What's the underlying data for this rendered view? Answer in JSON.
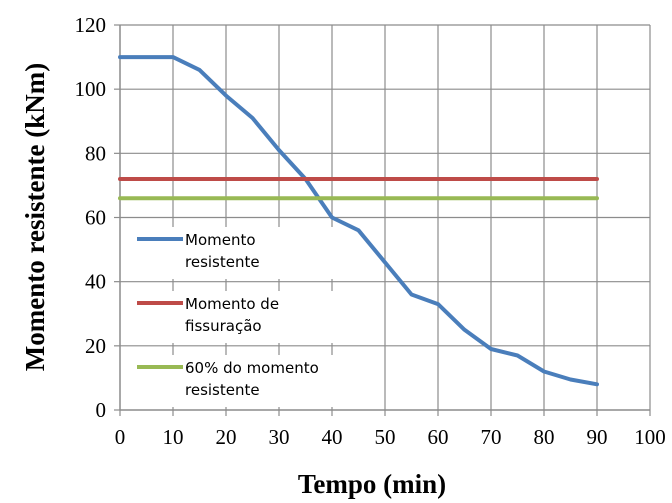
{
  "chart_data": {
    "type": "line",
    "xlabel": "Tempo (min)",
    "ylabel": "Momento resistente (kNm)",
    "xlim": [
      0,
      100
    ],
    "ylim": [
      0,
      120
    ],
    "xticks": [
      0,
      10,
      20,
      30,
      40,
      50,
      60,
      70,
      80,
      90,
      100
    ],
    "yticks": [
      0,
      20,
      40,
      60,
      80,
      100,
      120
    ],
    "grid": true,
    "legend_position": "left-middle",
    "series": [
      {
        "name_lines": [
          "Momento",
          "resistente"
        ],
        "color": "#4a7ebb",
        "x": [
          0,
          5,
          10,
          15,
          20,
          25,
          30,
          35,
          40,
          45,
          50,
          55,
          60,
          65,
          70,
          75,
          80,
          85,
          90
        ],
        "y": [
          110,
          110,
          110,
          106,
          98,
          91,
          81,
          72,
          60,
          56,
          46,
          36,
          33,
          25,
          19,
          17,
          12,
          9.5,
          8
        ]
      },
      {
        "name_lines": [
          "Momento de",
          "fissuração"
        ],
        "color": "#be4b48",
        "x": [
          0,
          90
        ],
        "y": [
          72,
          72
        ]
      },
      {
        "name_lines": [
          "60% do momento",
          "resistente"
        ],
        "color": "#98b954",
        "x": [
          0,
          90
        ],
        "y": [
          66,
          66
        ]
      }
    ]
  }
}
